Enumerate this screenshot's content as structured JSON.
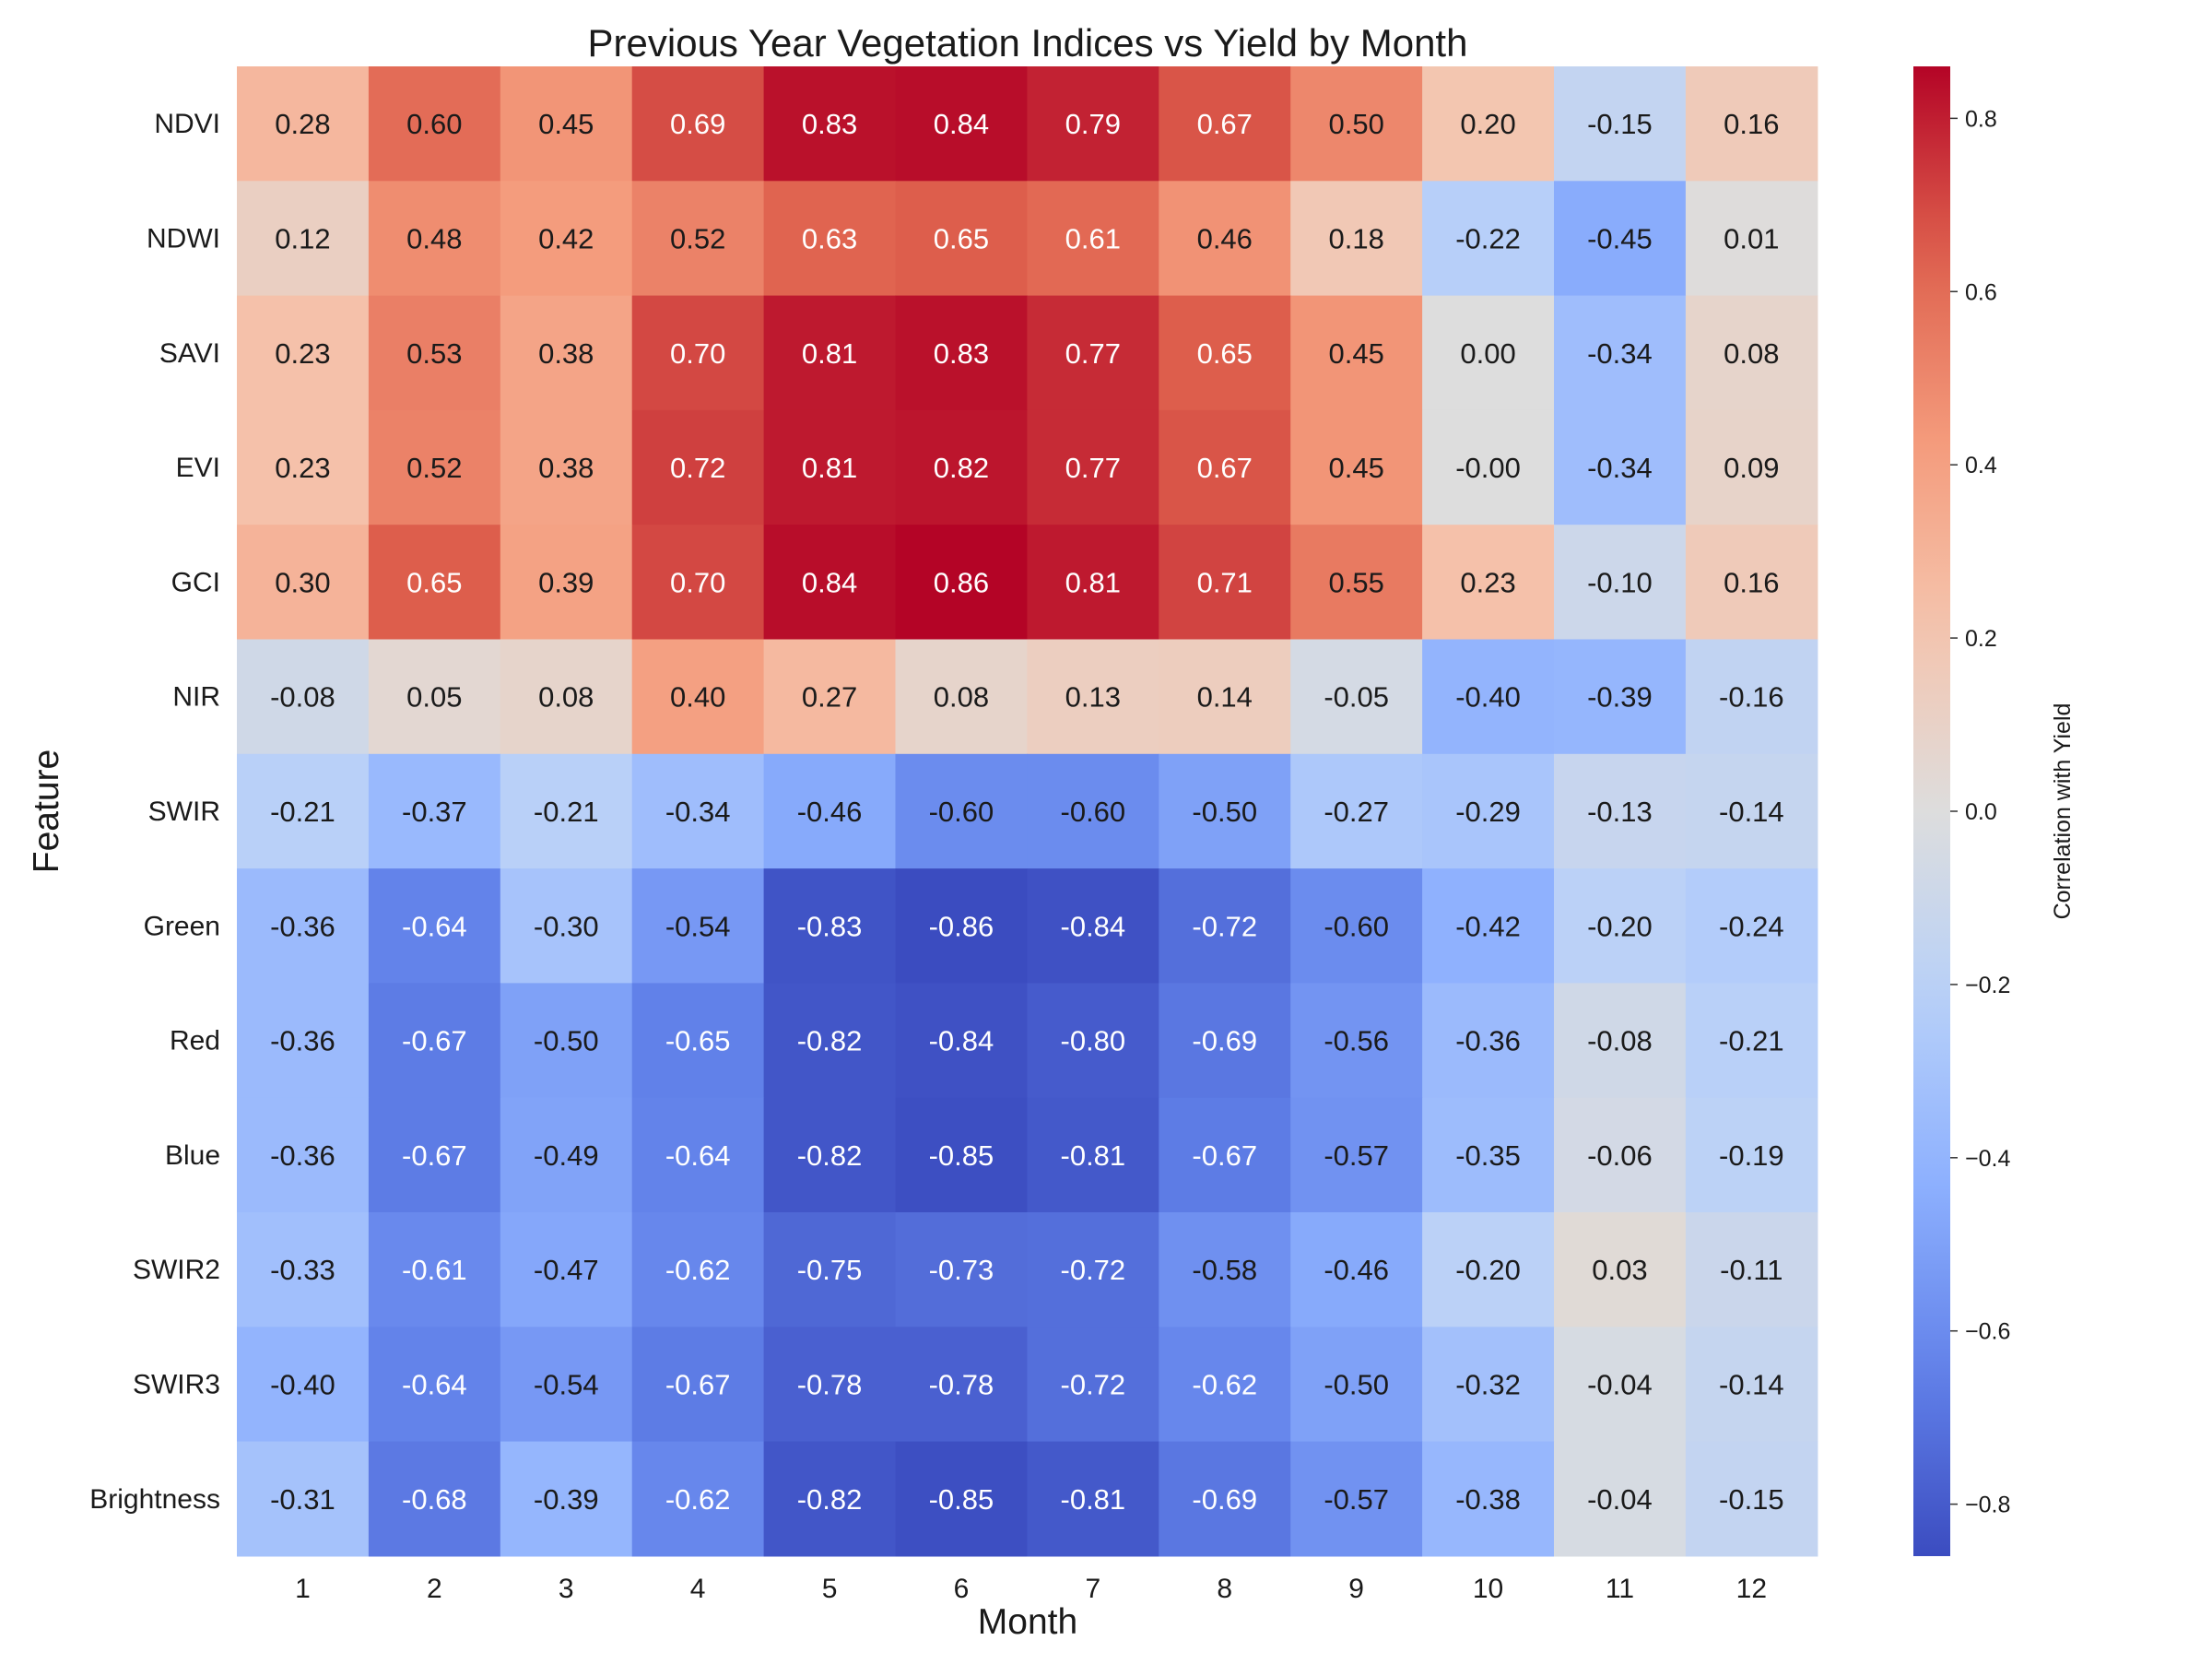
{
  "chart_data": {
    "type": "heatmap",
    "title": "Previous Year Vegetation Indices vs Yield by Month",
    "xlabel": "Month",
    "ylabel": "Feature",
    "x_categories": [
      "1",
      "2",
      "3",
      "4",
      "5",
      "6",
      "7",
      "8",
      "9",
      "10",
      "11",
      "12"
    ],
    "y_categories": [
      "NDVI",
      "NDWI",
      "SAVI",
      "EVI",
      "GCI",
      "NIR",
      "SWIR",
      "Green",
      "Red",
      "Blue",
      "SWIR2",
      "SWIR3",
      "Brightness"
    ],
    "values": [
      [
        0.28,
        0.6,
        0.45,
        0.69,
        0.83,
        0.84,
        0.79,
        0.67,
        0.5,
        0.2,
        -0.15,
        0.16
      ],
      [
        0.12,
        0.48,
        0.42,
        0.52,
        0.63,
        0.65,
        0.61,
        0.46,
        0.18,
        -0.22,
        -0.45,
        0.01
      ],
      [
        0.23,
        0.53,
        0.38,
        0.7,
        0.81,
        0.83,
        0.77,
        0.65,
        0.45,
        0.0,
        -0.34,
        0.08
      ],
      [
        0.23,
        0.52,
        0.38,
        0.72,
        0.81,
        0.82,
        0.77,
        0.67,
        0.45,
        -0.001,
        -0.34,
        0.09
      ],
      [
        0.3,
        0.65,
        0.39,
        0.7,
        0.84,
        0.86,
        0.81,
        0.71,
        0.55,
        0.23,
        -0.1,
        0.16
      ],
      [
        -0.08,
        0.05,
        0.08,
        0.4,
        0.27,
        0.08,
        0.13,
        0.14,
        -0.05,
        -0.4,
        -0.39,
        -0.16
      ],
      [
        -0.21,
        -0.37,
        -0.21,
        -0.34,
        -0.46,
        -0.6,
        -0.6,
        -0.5,
        -0.27,
        -0.29,
        -0.13,
        -0.14
      ],
      [
        -0.36,
        -0.64,
        -0.3,
        -0.54,
        -0.83,
        -0.86,
        -0.84,
        -0.72,
        -0.6,
        -0.42,
        -0.2,
        -0.24
      ],
      [
        -0.36,
        -0.67,
        -0.5,
        -0.65,
        -0.82,
        -0.84,
        -0.8,
        -0.69,
        -0.56,
        -0.36,
        -0.08,
        -0.21
      ],
      [
        -0.36,
        -0.67,
        -0.49,
        -0.64,
        -0.82,
        -0.85,
        -0.81,
        -0.67,
        -0.57,
        -0.35,
        -0.06,
        -0.19
      ],
      [
        -0.33,
        -0.61,
        -0.47,
        -0.62,
        -0.75,
        -0.73,
        -0.72,
        -0.58,
        -0.46,
        -0.2,
        0.03,
        -0.11
      ],
      [
        -0.4,
        -0.64,
        -0.54,
        -0.67,
        -0.78,
        -0.78,
        -0.72,
        -0.62,
        -0.5,
        -0.32,
        -0.04,
        -0.14
      ],
      [
        -0.31,
        -0.68,
        -0.39,
        -0.62,
        -0.82,
        -0.85,
        -0.81,
        -0.69,
        -0.57,
        -0.38,
        -0.04,
        -0.15
      ]
    ],
    "value_format": "2 decimals",
    "colormap": "coolwarm",
    "color_range": [
      -0.86,
      0.86
    ],
    "colorbar": {
      "label": "Correlation with Yield",
      "ticks": [
        0.8,
        0.6,
        0.4,
        0.2,
        0.0,
        -0.2,
        -0.4,
        -0.6,
        -0.8
      ],
      "tick_labels": [
        "0.8",
        "0.6",
        "0.4",
        "0.2",
        "0.0",
        "−0.2",
        "−0.4",
        "−0.6",
        "−0.8"
      ],
      "placement": "right"
    },
    "grid": false
  }
}
